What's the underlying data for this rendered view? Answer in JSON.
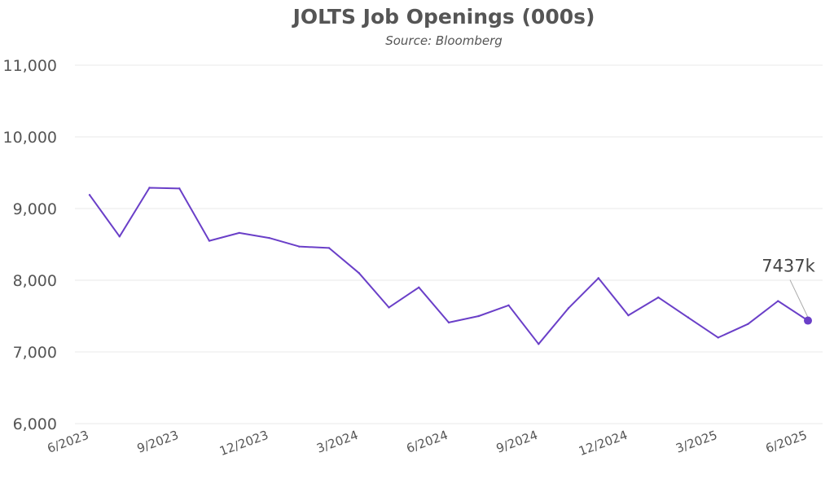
{
  "chart_data": {
    "type": "line",
    "title": "JOLTS Job Openings (000s)",
    "subtitle": "Source: Bloomberg",
    "xlabel": "",
    "ylabel": "",
    "ylim": [
      6000,
      11000
    ],
    "yticks": [
      6000,
      7000,
      8000,
      9000,
      10000,
      11000
    ],
    "ytick_labels": [
      "6,000",
      "7,000",
      "8,000",
      "9,000",
      "10,000",
      "11,000"
    ],
    "grid": true,
    "x": [
      "6/2023",
      "7/2023",
      "8/2023",
      "9/2023",
      "10/2023",
      "11/2023",
      "12/2023",
      "1/2024",
      "2/2024",
      "3/2024",
      "4/2024",
      "5/2024",
      "6/2024",
      "7/2024",
      "8/2024",
      "9/2024",
      "10/2024",
      "11/2024",
      "12/2024",
      "1/2025",
      "2/2025",
      "3/2025",
      "4/2025",
      "5/2025",
      "6/2025"
    ],
    "xtick_labels": [
      "6/2023",
      "9/2023",
      "12/2023",
      "3/2024",
      "6/2024",
      "9/2024",
      "12/2024",
      "3/2025",
      "6/2025"
    ],
    "series": [
      {
        "name": "",
        "color": "#6a3fc8",
        "values": [
          9190,
          8610,
          9290,
          9280,
          8550,
          8660,
          8590,
          8470,
          8450,
          8100,
          7620,
          7900,
          7410,
          7500,
          7650,
          7110,
          7610,
          8030,
          7510,
          7760,
          7480,
          7200,
          7390,
          7710,
          7437
        ]
      }
    ],
    "annotation": {
      "text": "7437k",
      "x": "6/2025",
      "y": 7437
    }
  }
}
